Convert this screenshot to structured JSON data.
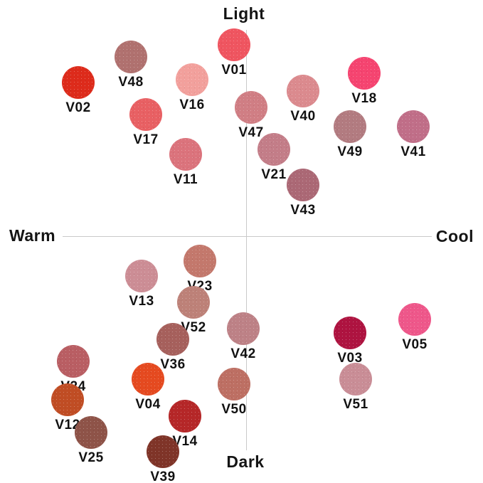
{
  "chart_data": {
    "type": "scatter",
    "title": "",
    "x_axis": {
      "left_label": "Warm",
      "right_label": "Cool"
    },
    "y_axis": {
      "top_label": "Light",
      "bottom_label": "Dark"
    },
    "axis_range_note": "warm_cool: -1 (warm) to +1 (cool); light_dark: -1 (dark) to +1 (light)",
    "grid": false,
    "legend": "none",
    "points": [
      {
        "label": "V01",
        "warm_cool": -0.07,
        "light_dark": 0.92,
        "color": "#ef5560",
        "px": [
          329,
          63
        ]
      },
      {
        "label": "V02",
        "warm_cool": -0.91,
        "light_dark": 0.74,
        "color": "#dd2b1b",
        "px": [
          110,
          116
        ]
      },
      {
        "label": "V48",
        "warm_cool": -0.62,
        "light_dark": 0.86,
        "color": "#b0716f",
        "px": [
          184,
          80
        ]
      },
      {
        "label": "V16",
        "warm_cool": -0.29,
        "light_dark": 0.75,
        "color": "#f2a09c",
        "px": [
          270,
          112
        ]
      },
      {
        "label": "V17",
        "warm_cool": -0.54,
        "light_dark": 0.59,
        "color": "#e86063",
        "px": [
          205,
          161
        ]
      },
      {
        "label": "V11",
        "warm_cool": -0.33,
        "light_dark": 0.39,
        "color": "#db737c",
        "px": [
          261,
          217
        ]
      },
      {
        "label": "V18",
        "warm_cool": 0.64,
        "light_dark": 0.78,
        "color": "#f54470",
        "px": [
          512,
          103
        ]
      },
      {
        "label": "V40",
        "warm_cool": 0.31,
        "light_dark": 0.7,
        "color": "#db8a8e",
        "px": [
          426,
          128
        ]
      },
      {
        "label": "V47",
        "warm_cool": 0.03,
        "light_dark": 0.62,
        "color": "#d07e84",
        "px": [
          353,
          151
        ]
      },
      {
        "label": "V49",
        "warm_cool": 0.56,
        "light_dark": 0.53,
        "color": "#b27b80",
        "px": [
          492,
          178
        ]
      },
      {
        "label": "V41",
        "warm_cool": 0.9,
        "light_dark": 0.53,
        "color": "#c06e88",
        "px": [
          581,
          178
        ]
      },
      {
        "label": "V21",
        "warm_cool": 0.15,
        "light_dark": 0.42,
        "color": "#c37d88",
        "px": [
          385,
          210
        ]
      },
      {
        "label": "V43",
        "warm_cool": 0.31,
        "light_dark": 0.25,
        "color": "#ab6875",
        "px": [
          426,
          260
        ]
      },
      {
        "label": "V13",
        "warm_cool": -0.57,
        "light_dark": -0.19,
        "color": "#cc8d95",
        "px": [
          199,
          388
        ]
      },
      {
        "label": "V23",
        "warm_cool": -0.25,
        "light_dark": -0.12,
        "color": "#c3786c",
        "px": [
          281,
          367
        ]
      },
      {
        "label": "V52",
        "warm_cool": -0.28,
        "light_dark": -0.32,
        "color": "#bd8178",
        "px": [
          272,
          425
        ]
      },
      {
        "label": "V36",
        "warm_cool": -0.4,
        "light_dark": -0.5,
        "color": "#a6605c",
        "px": [
          243,
          477
        ]
      },
      {
        "label": "V42",
        "warm_cool": -0.02,
        "light_dark": -0.45,
        "color": "#bd8186",
        "px": [
          342,
          462
        ]
      },
      {
        "label": "V24",
        "warm_cool": -0.93,
        "light_dark": -0.6,
        "color": "#b95e63",
        "px": [
          103,
          508
        ]
      },
      {
        "label": "V04",
        "warm_cool": -0.53,
        "light_dark": -0.69,
        "color": "#e54a20",
        "px": [
          208,
          533
        ]
      },
      {
        "label": "V12",
        "warm_cool": -0.97,
        "light_dark": -0.79,
        "color": "#c04d24",
        "px": [
          95,
          562
        ]
      },
      {
        "label": "V50",
        "warm_cool": -0.07,
        "light_dark": -0.71,
        "color": "#bd6f63",
        "px": [
          329,
          540
        ]
      },
      {
        "label": "V14",
        "warm_cool": -0.33,
        "light_dark": -0.87,
        "color": "#b52728",
        "px": [
          260,
          585
        ]
      },
      {
        "label": "V25",
        "warm_cool": -0.84,
        "light_dark": -0.95,
        "color": "#8e5348",
        "px": [
          128,
          608
        ]
      },
      {
        "label": "V39",
        "warm_cool": -0.45,
        "light_dark": -1.04,
        "color": "#7f3428",
        "px": [
          229,
          635
        ]
      },
      {
        "label": "V03",
        "warm_cool": 0.56,
        "light_dark": -0.47,
        "color": "#ae1340",
        "px": [
          492,
          468
        ]
      },
      {
        "label": "V05",
        "warm_cool": 0.91,
        "light_dark": -0.4,
        "color": "#ee578a",
        "px": [
          583,
          449
        ]
      },
      {
        "label": "V51",
        "warm_cool": 0.59,
        "light_dark": -0.69,
        "color": "#c98d96",
        "px": [
          500,
          533
        ]
      }
    ]
  },
  "colors": {
    "background": "#ffffff",
    "axis_line": "#c9c9c9",
    "text": "#141414"
  }
}
